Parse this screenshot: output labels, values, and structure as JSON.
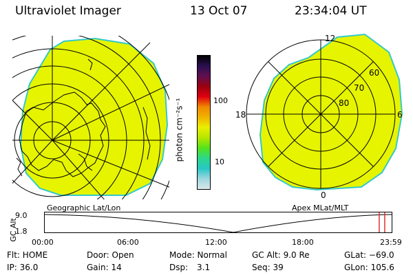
{
  "header": {
    "title": "Ultraviolet Imager",
    "date": "13 Oct 07",
    "time": "23:34:04 UT"
  },
  "colors": {
    "aurora_fill": "#e6f400",
    "aurora_edge": "#33c9c9",
    "timeline_marker": "#e03030"
  },
  "left_panel": {
    "caption": "Geographic Lat/Lon"
  },
  "colorbar": {
    "label": "photon cm⁻²s⁻¹",
    "ticks": [
      "100",
      "10"
    ],
    "stops": [
      "#d8e8e8",
      "#9fd7e0",
      "#29c6c6",
      "#2cd88c",
      "#54e21c",
      "#b6e600",
      "#e9f000",
      "#f0b300",
      "#f08a00",
      "#e00010",
      "#9a0010",
      "#601050",
      "#2a1050",
      "#000000"
    ]
  },
  "right_panel": {
    "caption": "Apex MLat/MLT",
    "mlt_labels": {
      "top": "12",
      "left": "18",
      "right": "6",
      "bottom": "0"
    },
    "mlat_labels": [
      "60",
      "70",
      "80"
    ]
  },
  "timeline": {
    "axis_title": "GC Alt",
    "y_ticks": [
      "9.0",
      "1.8"
    ],
    "x_ticks": [
      "00:00",
      "06:00",
      "12:00",
      "18:00",
      "23:59"
    ],
    "current_fraction": 0.98
  },
  "status": {
    "flt": "Flt: HOME",
    "ip": "IP: 36.0",
    "door": "Door: Open",
    "gain": "Gain: 14",
    "mode": "Mode: Normal",
    "dsp_label": "Dsp:",
    "dsp_value": "3.1",
    "gcalt": "GC Alt: 9.0 Re",
    "seq": "Seq: 39",
    "glat": "GLat: −69.0",
    "glon": "GLon: 105.6"
  }
}
